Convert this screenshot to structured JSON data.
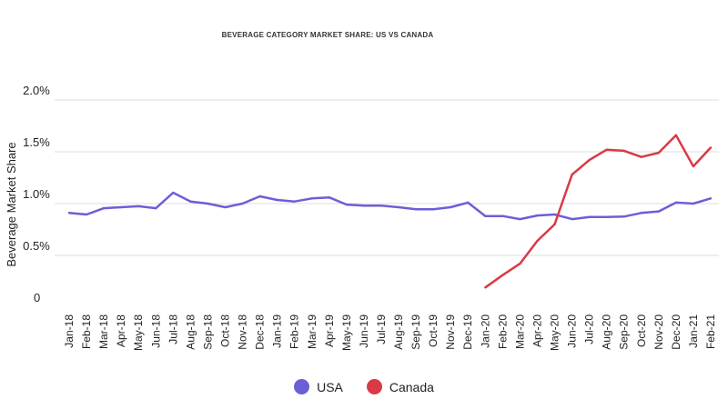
{
  "chart_data": {
    "type": "line",
    "title": "BEVERAGE CATEGORY MARKET SHARE: US VS CANADA",
    "xlabel": "",
    "ylabel": "Beverage Market Share",
    "ylim": [
      0,
      2.0
    ],
    "yticks": [
      {
        "value": 0,
        "label": "0"
      },
      {
        "value": 0.5,
        "label": "0.5%"
      },
      {
        "value": 1.0,
        "label": "1.0%"
      },
      {
        "value": 1.5,
        "label": "1.5%"
      },
      {
        "value": 2.0,
        "label": "2.0%"
      }
    ],
    "grid": true,
    "legend_position": "bottom",
    "categories": [
      "Jan-18",
      "Feb-18",
      "Mar-18",
      "Apr-18",
      "May-18",
      "Jun-18",
      "Jul-18",
      "Aug-18",
      "Sep-18",
      "Oct-18",
      "Nov-18",
      "Dec-18",
      "Jan-19",
      "Feb-19",
      "Mar-19",
      "Apr-19",
      "May-19",
      "Jun-19",
      "Jul-19",
      "Aug-19",
      "Sep-19",
      "Oct-19",
      "Nov-19",
      "Dec-19",
      "Jan-20",
      "Feb-20",
      "Mar-20",
      "Apr-20",
      "May-20",
      "Jun-20",
      "Jul-20",
      "Aug-20",
      "Sep-20",
      "Oct-20",
      "Nov-20",
      "Dec-20",
      "Jan-21",
      "Feb-21"
    ],
    "series": [
      {
        "name": "USA",
        "color": "#6b5fd6",
        "values": [
          0.91,
          0.895,
          0.955,
          0.965,
          0.975,
          0.955,
          1.105,
          1.02,
          1.0,
          0.965,
          1.0,
          1.07,
          1.035,
          1.02,
          1.05,
          1.06,
          0.99,
          0.98,
          0.98,
          0.965,
          0.945,
          0.945,
          0.965,
          1.01,
          0.88,
          0.88,
          0.85,
          0.885,
          0.895,
          0.85,
          0.87,
          0.87,
          0.875,
          0.91,
          0.925,
          1.01,
          1.0,
          1.05
        ]
      },
      {
        "name": "Canada",
        "color": "#d93a45",
        "values": [
          null,
          null,
          null,
          null,
          null,
          null,
          null,
          null,
          null,
          null,
          null,
          null,
          null,
          null,
          null,
          null,
          null,
          null,
          null,
          null,
          null,
          null,
          null,
          null,
          0.19,
          0.31,
          0.42,
          0.64,
          0.8,
          1.28,
          1.42,
          1.52,
          1.51,
          1.45,
          1.49,
          1.66,
          1.36,
          1.54
        ]
      }
    ]
  }
}
